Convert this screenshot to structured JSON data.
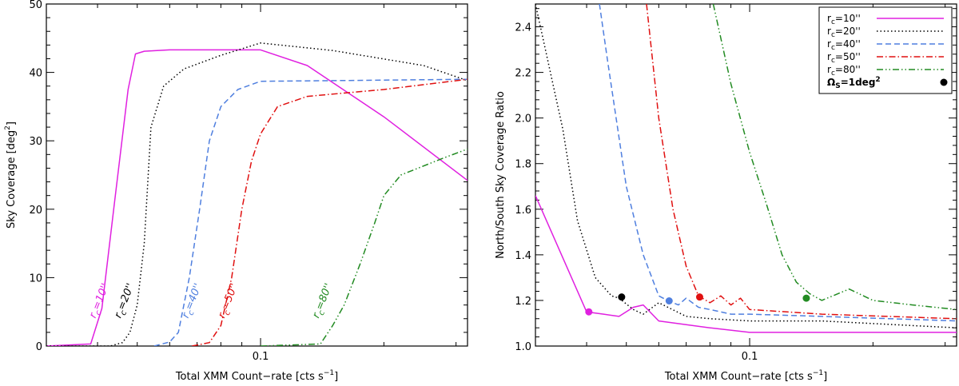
{
  "chart_data": [
    {
      "type": "line",
      "xlabel": "Total XMM Count−rate [cts s",
      "xlabel_sup": "−1",
      "xlabel_end": "]",
      "ylabel": "Sky Coverage [deg",
      "ylabel_sup": "2",
      "ylabel_end": "]",
      "xscale": "log",
      "xlim": [
        0.03,
        0.32
      ],
      "ylim": [
        0,
        50
      ],
      "x_ticks": [
        {
          "value": 0.1,
          "label": "0.1"
        }
      ],
      "y_ticks": [
        {
          "value": 0,
          "label": "0"
        },
        {
          "value": 10,
          "label": "10"
        },
        {
          "value": 20,
          "label": "20"
        },
        {
          "value": 30,
          "label": "30"
        },
        {
          "value": 40,
          "label": "40"
        },
        {
          "value": 50,
          "label": "50"
        }
      ],
      "series": [
        {
          "name": "rc=10''",
          "color": "#e020e0",
          "dash": "solid",
          "x": [
            0.03,
            0.0385,
            0.041,
            0.044,
            0.0475,
            0.0495,
            0.052,
            0.06,
            0.1,
            0.13,
            0.2,
            0.32
          ],
          "y": [
            0,
            0.3,
            5.5,
            21,
            37.5,
            42.7,
            43.1,
            43.3,
            43.3,
            41,
            33.5,
            24.2
          ]
        },
        {
          "name": "rc=20''",
          "color": "#000000",
          "dash": "dot",
          "x": [
            0.03,
            0.043,
            0.046,
            0.048,
            0.05,
            0.052,
            0.054,
            0.058,
            0.065,
            0.08,
            0.1,
            0.15,
            0.25,
            0.32
          ],
          "y": [
            0,
            0,
            0.5,
            2,
            6,
            15,
            32,
            38,
            40.5,
            42.5,
            44.3,
            43.2,
            41,
            38.8
          ]
        },
        {
          "name": "rc=40''",
          "color": "#4f7fdf",
          "dash": "dash",
          "x": [
            0.055,
            0.06,
            0.063,
            0.067,
            0.071,
            0.075,
            0.08,
            0.088,
            0.1,
            0.15,
            0.32
          ],
          "y": [
            0,
            0.6,
            2,
            10,
            20,
            30,
            35,
            37.5,
            38.7,
            38.8,
            39
          ]
        },
        {
          "name": "rc=50''",
          "color": "#e01010",
          "dash": "dashdot",
          "x": [
            0.068,
            0.075,
            0.08,
            0.085,
            0.09,
            0.095,
            0.1,
            0.11,
            0.13,
            0.2,
            0.32
          ],
          "y": [
            0,
            0.5,
            3,
            10,
            20,
            27,
            31,
            35,
            36.5,
            37.5,
            39
          ]
        },
        {
          "name": "rc=80''",
          "color": "#228b22",
          "dash": "dashdotdot",
          "x": [
            0.1,
            0.14,
            0.15,
            0.16,
            0.175,
            0.19,
            0.2,
            0.22,
            0.28,
            0.32
          ],
          "y": [
            0,
            0.3,
            3,
            6,
            12,
            18,
            22,
            25,
            27.5,
            28.8
          ]
        }
      ],
      "annotations": [
        {
          "base": "r",
          "sub": "c",
          "rest": "=10''",
          "color": "#e020e0",
          "x": 0.0395,
          "y": 4
        },
        {
          "base": "r",
          "sub": "c",
          "rest": "=20''",
          "color": "#000000",
          "x": 0.0455,
          "y": 4
        },
        {
          "base": "r",
          "sub": "c",
          "rest": "=40''",
          "color": "#4f7fdf",
          "x": 0.0665,
          "y": 4
        },
        {
          "base": "r",
          "sub": "c",
          "rest": "=50''",
          "color": "#e01010",
          "x": 0.0815,
          "y": 4
        },
        {
          "base": "r",
          "sub": "c",
          "rest": "=80''",
          "color": "#228b22",
          "x": 0.1385,
          "y": 4
        }
      ]
    },
    {
      "type": "line",
      "xlabel": "Total XMM Count−rate [cts s",
      "xlabel_sup": "−1",
      "xlabel_end": "]",
      "ylabel": "North/South Sky Coverage Ratio",
      "xscale": "log",
      "xlim": [
        0.03,
        0.32
      ],
      "ylim": [
        1.0,
        2.5
      ],
      "x_ticks": [
        {
          "value": 0.1,
          "label": "0.1"
        }
      ],
      "y_ticks": [
        {
          "value": 1.0,
          "label": "1.0"
        },
        {
          "value": 1.2,
          "label": "1.2"
        },
        {
          "value": 1.4,
          "label": "1.4"
        },
        {
          "value": 1.6,
          "label": "1.6"
        },
        {
          "value": 1.8,
          "label": "1.8"
        },
        {
          "value": 2.0,
          "label": "2.0"
        },
        {
          "value": 2.2,
          "label": "2.2"
        },
        {
          "value": 2.4,
          "label": "2.4"
        }
      ],
      "series": [
        {
          "name": "rc=10''",
          "color": "#e020e0",
          "dash": "solid",
          "x": [
            0.03,
            0.04,
            0.044,
            0.048,
            0.052,
            0.055,
            0.06,
            0.08,
            0.1,
            0.15,
            0.32
          ],
          "y": [
            1.66,
            1.15,
            1.14,
            1.13,
            1.17,
            1.18,
            1.11,
            1.08,
            1.06,
            1.06,
            1.06
          ]
        },
        {
          "name": "rc=20''",
          "color": "#000000",
          "dash": "dot",
          "x": [
            0.03,
            0.035,
            0.038,
            0.042,
            0.046,
            0.048,
            0.052,
            0.055,
            0.06,
            0.07,
            0.08,
            0.1,
            0.15,
            0.32
          ],
          "y": [
            2.5,
            1.95,
            1.55,
            1.3,
            1.22,
            1.21,
            1.16,
            1.14,
            1.19,
            1.13,
            1.12,
            1.11,
            1.11,
            1.08
          ]
        },
        {
          "name": "rc=40''",
          "color": "#4f7fdf",
          "dash": "dash",
          "x": [
            0.043,
            0.045,
            0.05,
            0.055,
            0.06,
            0.063,
            0.067,
            0.07,
            0.075,
            0.08,
            0.09,
            0.1,
            0.15,
            0.32
          ],
          "y": [
            2.5,
            2.25,
            1.7,
            1.4,
            1.22,
            1.2,
            1.18,
            1.21,
            1.17,
            1.16,
            1.14,
            1.14,
            1.13,
            1.11
          ]
        },
        {
          "name": "rc=50''",
          "color": "#e01010",
          "dash": "dashdot",
          "x": [
            0.056,
            0.06,
            0.065,
            0.07,
            0.075,
            0.08,
            0.085,
            0.09,
            0.095,
            0.1,
            0.15,
            0.32
          ],
          "y": [
            2.5,
            2.0,
            1.6,
            1.35,
            1.22,
            1.19,
            1.22,
            1.18,
            1.21,
            1.16,
            1.14,
            1.12
          ]
        },
        {
          "name": "rc=80''",
          "color": "#228b22",
          "dash": "dashdotdot",
          "x": [
            0.0815,
            0.09,
            0.1,
            0.11,
            0.12,
            0.13,
            0.14,
            0.15,
            0.175,
            0.2,
            0.25,
            0.32
          ],
          "y": [
            2.5,
            2.15,
            1.85,
            1.62,
            1.4,
            1.28,
            1.23,
            1.2,
            1.25,
            1.2,
            1.18,
            1.16
          ]
        }
      ],
      "markers": [
        {
          "x": 0.0405,
          "y": 1.15,
          "color": "#e020e0"
        },
        {
          "x": 0.0487,
          "y": 1.215,
          "color": "#000000"
        },
        {
          "x": 0.0636,
          "y": 1.198,
          "color": "#4f7fdf"
        },
        {
          "x": 0.0755,
          "y": 1.215,
          "color": "#e01010"
        },
        {
          "x": 0.1375,
          "y": 1.21,
          "color": "#228b22"
        }
      ],
      "legend": {
        "position": "top-right",
        "entries": [
          {
            "base": "r",
            "sub": "c",
            "rest": "=10''",
            "color": "#e020e0",
            "dash": "solid"
          },
          {
            "base": "r",
            "sub": "c",
            "rest": "=20''",
            "color": "#000000",
            "dash": "dot"
          },
          {
            "base": "r",
            "sub": "c",
            "rest": "=40''",
            "color": "#4f7fdf",
            "dash": "dash"
          },
          {
            "base": "r",
            "sub": "c",
            "rest": "=50''",
            "color": "#e01010",
            "dash": "dashdot"
          },
          {
            "base": "r",
            "sub": "c",
            "rest": "=80''",
            "color": "#228b22",
            "dash": "dashdotdot"
          }
        ],
        "marker_entry": {
          "base": "Ω",
          "sub": "S",
          "rest": "=1deg",
          "sup": "2",
          "color": "#000000"
        }
      }
    }
  ]
}
